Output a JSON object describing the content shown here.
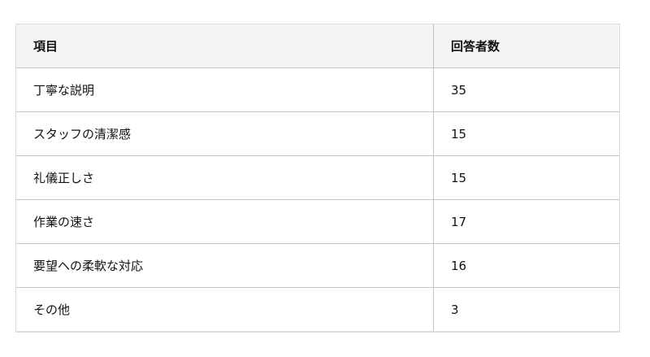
{
  "table": {
    "headers": [
      "項目",
      "回答者数"
    ],
    "rows": [
      {
        "item": "丁寧な説明",
        "count": "35"
      },
      {
        "item": "スタッフの清潔感",
        "count": "15"
      },
      {
        "item": "礼儀正しさ",
        "count": "15"
      },
      {
        "item": "作業の速さ",
        "count": "17"
      },
      {
        "item": "要望への柔軟な対応",
        "count": "16"
      },
      {
        "item": "その他",
        "count": "3"
      }
    ]
  }
}
